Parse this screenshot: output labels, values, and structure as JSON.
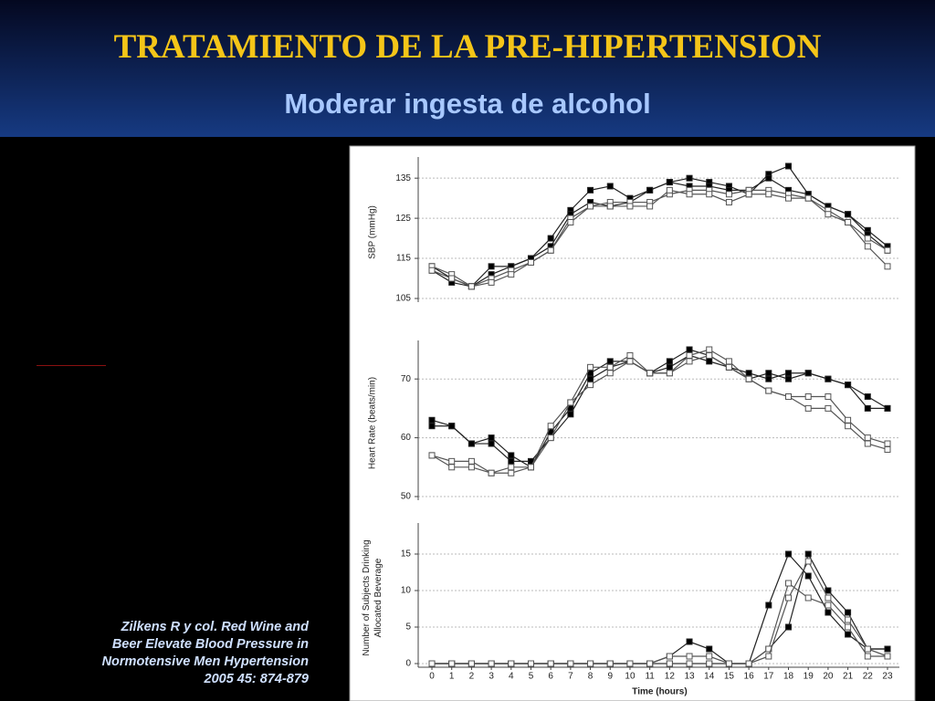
{
  "slide": {
    "title": "TRATAMIENTO DE LA PRE-HIPERTENSION",
    "subtitle": "Moderar ingesta de alcohol",
    "citation": [
      "Zilkens R y col. Red Wine and",
      "Beer Elevate Blood Pressure in",
      "Normotensive Men Hypertension",
      "2005 45: 874-879"
    ]
  },
  "chart_data": [
    {
      "type": "line",
      "ylabel": [
        "SBP (mmHg)"
      ],
      "x": [
        0,
        1,
        2,
        3,
        4,
        5,
        6,
        7,
        8,
        9,
        10,
        11,
        12,
        13,
        14,
        15,
        16,
        17,
        18,
        19,
        20,
        21,
        22,
        23
      ],
      "xlim": [
        -0.6,
        23.6
      ],
      "ylim": [
        105,
        138
      ],
      "yticks": [
        105,
        115,
        125,
        135
      ],
      "grid": true,
      "series": [
        {
          "color": "#222222",
          "marker": "filled",
          "values": [
            113,
            110,
            108,
            113,
            113,
            115,
            120,
            127,
            132,
            133,
            130,
            132,
            134,
            135,
            134,
            133,
            131,
            136,
            138,
            131,
            128,
            126,
            122,
            118
          ]
        },
        {
          "color": "#222222",
          "marker": "filled",
          "values": [
            112,
            109,
            108,
            111,
            113,
            115,
            118,
            126,
            129,
            128,
            129,
            132,
            134,
            133,
            133,
            132,
            132,
            135,
            132,
            131,
            128,
            126,
            121,
            117
          ]
        },
        {
          "color": "#555555",
          "marker": "open",
          "values": [
            113,
            111,
            108,
            110,
            112,
            114,
            117,
            125,
            128,
            129,
            129,
            129,
            131,
            132,
            132,
            131,
            132,
            132,
            131,
            130,
            127,
            124,
            118,
            113
          ]
        },
        {
          "color": "#555555",
          "marker": "open",
          "values": [
            112,
            110,
            108,
            109,
            111,
            114,
            117,
            124,
            128,
            128,
            128,
            128,
            132,
            131,
            131,
            129,
            131,
            131,
            130,
            130,
            126,
            124,
            120,
            117
          ]
        }
      ]
    },
    {
      "type": "line",
      "ylabel": [
        "Heart Rate (beats/min)"
      ],
      "x": [
        0,
        1,
        2,
        3,
        4,
        5,
        6,
        7,
        8,
        9,
        10,
        11,
        12,
        13,
        14,
        15,
        16,
        17,
        18,
        19,
        20,
        21,
        22,
        23
      ],
      "xlim": [
        -0.6,
        23.6
      ],
      "ylim": [
        50,
        75
      ],
      "yticks": [
        50,
        60,
        70
      ],
      "grid": true,
      "series": [
        {
          "color": "#222222",
          "marker": "filled",
          "values": [
            63,
            62,
            59,
            60,
            57,
            55,
            61,
            65,
            71,
            73,
            73,
            71,
            73,
            75,
            74,
            72,
            70,
            71,
            70,
            71,
            70,
            69,
            67,
            65
          ]
        },
        {
          "color": "#222222",
          "marker": "filled",
          "values": [
            62,
            62,
            59,
            59,
            56,
            56,
            60,
            64,
            70,
            72,
            73,
            71,
            72,
            74,
            73,
            72,
            71,
            70,
            71,
            71,
            70,
            69,
            65,
            65
          ]
        },
        {
          "color": "#555555",
          "marker": "open",
          "values": [
            57,
            56,
            56,
            54,
            54,
            55,
            62,
            66,
            72,
            72,
            74,
            71,
            71,
            74,
            75,
            73,
            70,
            68,
            67,
            67,
            67,
            63,
            60,
            59
          ]
        },
        {
          "color": "#555555",
          "marker": "open",
          "values": [
            57,
            55,
            55,
            54,
            55,
            55,
            60,
            66,
            69,
            71,
            73,
            71,
            71,
            73,
            74,
            72,
            70,
            68,
            67,
            65,
            65,
            62,
            59,
            58
          ]
        }
      ]
    },
    {
      "type": "line",
      "ylabel": [
        "Number of Subjects Drinking",
        "Allocated Beverage"
      ],
      "xlabel": "Time (hours)",
      "x": [
        0,
        1,
        2,
        3,
        4,
        5,
        6,
        7,
        8,
        9,
        10,
        11,
        12,
        13,
        14,
        15,
        16,
        17,
        18,
        19,
        20,
        21,
        22,
        23
      ],
      "xlim": [
        -0.6,
        23.6
      ],
      "xticks": [
        0,
        1,
        2,
        3,
        4,
        5,
        6,
        7,
        8,
        9,
        10,
        11,
        12,
        13,
        14,
        15,
        16,
        17,
        18,
        19,
        20,
        21,
        22,
        23
      ],
      "ylim": [
        0,
        18
      ],
      "yticks": [
        0,
        5,
        10,
        15
      ],
      "grid": true,
      "series": [
        {
          "color": "#222222",
          "marker": "filled",
          "values": [
            0,
            0,
            0,
            0,
            0,
            0,
            0,
            0,
            0,
            0,
            0,
            0,
            1,
            3,
            2,
            0,
            0,
            8,
            15,
            12,
            7,
            4,
            2,
            2
          ]
        },
        {
          "color": "#222222",
          "marker": "filled",
          "values": [
            0,
            0,
            0,
            0,
            0,
            0,
            0,
            0,
            0,
            0,
            0,
            0,
            0,
            0,
            0,
            0,
            0,
            2,
            5,
            15,
            10,
            7,
            2,
            2
          ]
        },
        {
          "color": "#555555",
          "marker": "open",
          "values": [
            0,
            0,
            0,
            0,
            0,
            0,
            0,
            0,
            0,
            0,
            0,
            0,
            1,
            1,
            1,
            0,
            0,
            2,
            11,
            9,
            8,
            5,
            1,
            1
          ]
        },
        {
          "color": "#555555",
          "marker": "open",
          "values": [
            0,
            0,
            0,
            0,
            0,
            0,
            0,
            0,
            0,
            0,
            0,
            0,
            0,
            0,
            0,
            0,
            0,
            1,
            9,
            14,
            9,
            6,
            2,
            1
          ]
        }
      ]
    }
  ]
}
